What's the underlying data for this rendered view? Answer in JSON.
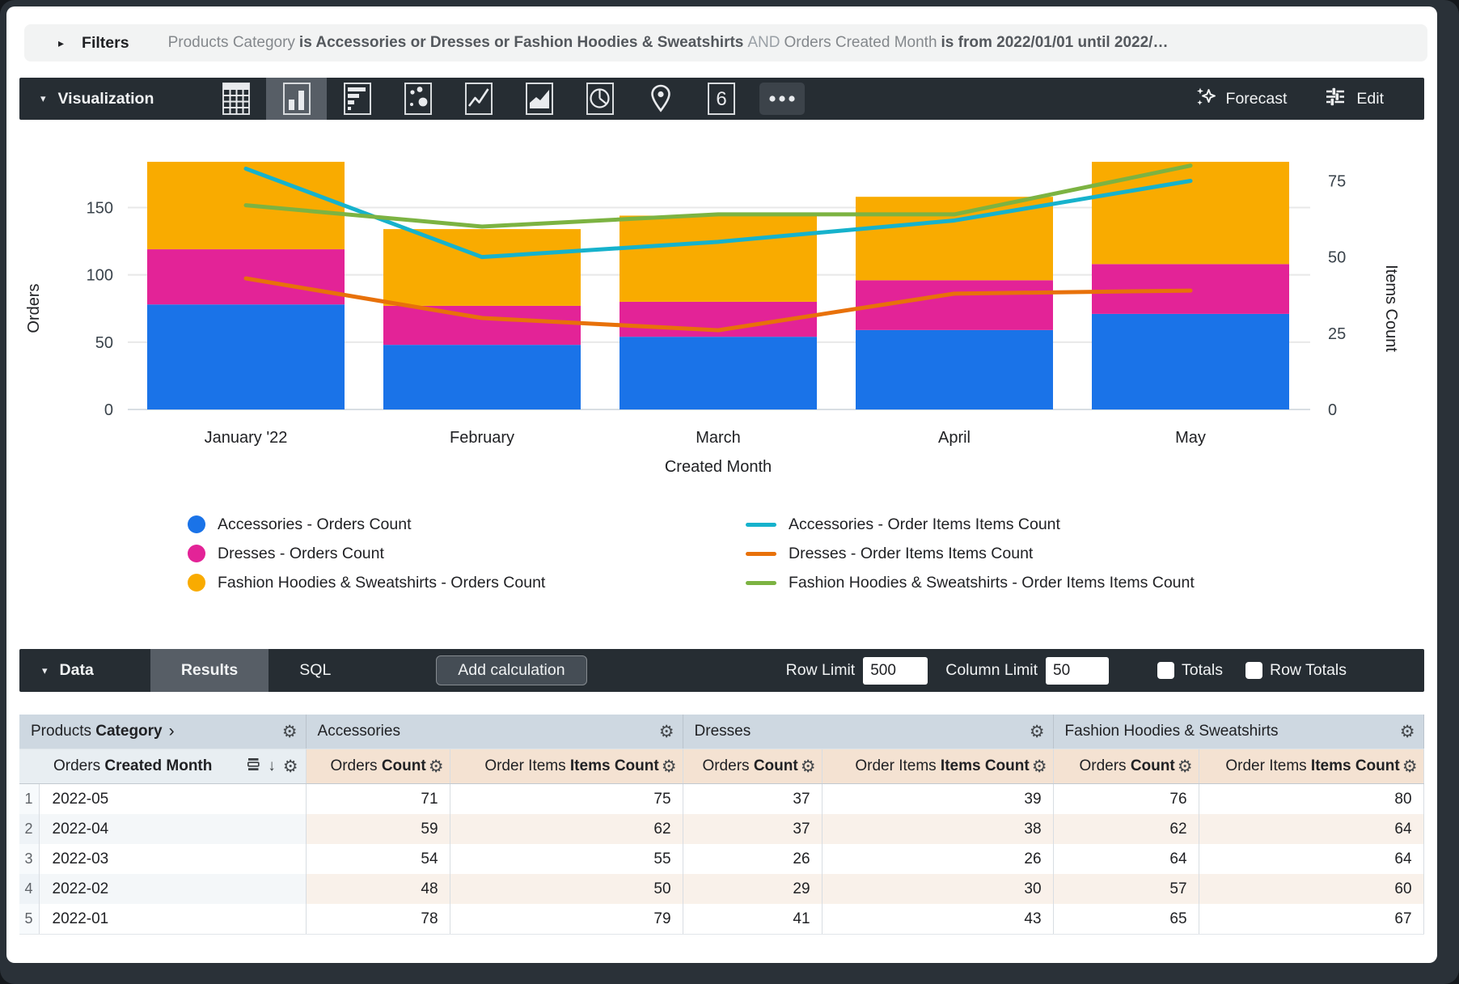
{
  "icons": {
    "filters_expand": "▸",
    "collapse": "▾",
    "chevron_right": "›",
    "sort_desc": "↓",
    "gear": "⚙",
    "single_value_text": "6",
    "viz_types": [
      {
        "name": "table-chart-icon",
        "selected": false
      },
      {
        "name": "column-chart-icon",
        "selected": true
      },
      {
        "name": "bar-chart-icon",
        "selected": false
      },
      {
        "name": "scatter-chart-icon",
        "selected": false
      },
      {
        "name": "line-chart-icon",
        "selected": false
      },
      {
        "name": "area-chart-icon",
        "selected": false
      },
      {
        "name": "pie-chart-icon",
        "selected": false
      },
      {
        "name": "map-pin-icon",
        "selected": false
      },
      {
        "name": "single-value-icon",
        "selected": false
      },
      {
        "name": "more-options-icon",
        "selected": false
      }
    ]
  },
  "filters": {
    "label": "Filters",
    "segments": [
      {
        "text": "Products Category",
        "style": "normal"
      },
      {
        "text": "is Accessories or Dresses or Fashion Hoodies & Sweatshirts",
        "style": "bold"
      },
      {
        "text": "AND",
        "style": "dim"
      },
      {
        "text": "Orders Created Month",
        "style": "normal"
      },
      {
        "text": "is from 2022/01/01 until 2022/…",
        "style": "bold"
      }
    ]
  },
  "viz_toolbar": {
    "label": "Visualization",
    "forecast_label": "Forecast",
    "edit_label": "Edit"
  },
  "chart_data": {
    "type": "bar",
    "subtype": "stacked-column-with-lines",
    "categories": [
      "January '22",
      "February",
      "March",
      "April",
      "May"
    ],
    "bar_series": [
      {
        "name": "Accessories - Orders Count",
        "color": "#1A73E8",
        "values": [
          78,
          48,
          54,
          59,
          71
        ]
      },
      {
        "name": "Dresses - Orders Count",
        "color": "#E32397",
        "values": [
          41,
          29,
          26,
          37,
          37
        ]
      },
      {
        "name": "Fashion Hoodies & Sweatshirts - Orders Count",
        "color": "#F9AB00",
        "values": [
          65,
          57,
          64,
          62,
          76
        ]
      }
    ],
    "line_series": [
      {
        "name": "Accessories - Order Items Items Count",
        "color": "#16B2CC",
        "values": [
          79,
          50,
          55,
          62,
          75
        ]
      },
      {
        "name": "Dresses - Order Items Items Count",
        "color": "#E8710A",
        "values": [
          43,
          30,
          26,
          38,
          39
        ]
      },
      {
        "name": "Fashion Hoodies & Sweatshirts - Order Items Items Count",
        "color": "#7CB342",
        "values": [
          67,
          60,
          64,
          64,
          80
        ]
      }
    ],
    "xlabel": "Created Month",
    "y_left": {
      "label": "Orders",
      "ticks": [
        0,
        50,
        100,
        150
      ],
      "max": 202
    },
    "y_right": {
      "label": "Items Count",
      "ticks": [
        0,
        25,
        50,
        75
      ],
      "max": 89.2
    },
    "grid": true,
    "legend_position": "bottom"
  },
  "data_toolbar": {
    "label": "Data",
    "tabs": [
      {
        "label": "Results",
        "active": true
      },
      {
        "label": "SQL",
        "active": false
      }
    ],
    "add_calculation_label": "Add calculation",
    "row_limit_label": "Row Limit",
    "row_limit_value": "500",
    "column_limit_label": "Column Limit",
    "column_limit_value": "50",
    "totals_label": "Totals",
    "totals_checked": false,
    "row_totals_label": "Row Totals",
    "row_totals_checked": false
  },
  "table": {
    "dimension_group": {
      "regular": "Products ",
      "bold": "Category"
    },
    "measure_groups": [
      "Accessories",
      "Dresses",
      "Fashion Hoodies & Sweatshirts"
    ],
    "dimension_subheader": {
      "regular": "Orders ",
      "bold": "Created Month"
    },
    "measure_subheaders": [
      {
        "regular": "Orders ",
        "bold": "Count"
      },
      {
        "regular": "Order Items ",
        "bold": "Items Count"
      }
    ],
    "rows": [
      {
        "num": "1",
        "month": "2022-05",
        "values": [
          "71",
          "75",
          "37",
          "39",
          "76",
          "80"
        ]
      },
      {
        "num": "2",
        "month": "2022-04",
        "values": [
          "59",
          "62",
          "37",
          "38",
          "62",
          "64"
        ]
      },
      {
        "num": "3",
        "month": "2022-03",
        "values": [
          "54",
          "55",
          "26",
          "26",
          "64",
          "64"
        ]
      },
      {
        "num": "4",
        "month": "2022-02",
        "values": [
          "48",
          "50",
          "29",
          "30",
          "57",
          "60"
        ]
      },
      {
        "num": "5",
        "month": "2022-01",
        "values": [
          "78",
          "79",
          "41",
          "43",
          "65",
          "67"
        ]
      }
    ]
  }
}
